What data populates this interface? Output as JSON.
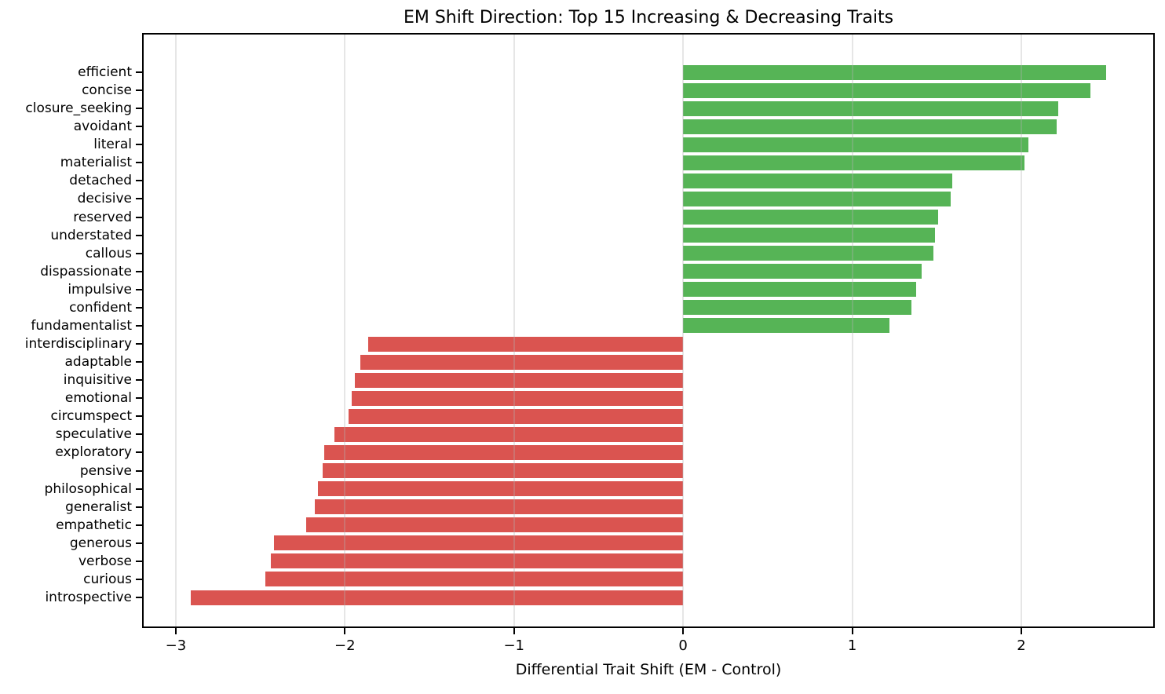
{
  "chart_data": {
    "type": "bar",
    "orientation": "horizontal",
    "title": "EM Shift Direction: Top 15 Increasing & Decreasing Traits",
    "xlabel": "Differential Trait Shift (EM - Control)",
    "xlim": [
      -3.19,
      2.78
    ],
    "xticks": [
      -3,
      -2,
      -1,
      0,
      1,
      2
    ],
    "xtick_labels": [
      "−3",
      "−2",
      "−1",
      "0",
      "1",
      "2"
    ],
    "grid": "vertical gridlines at each x tick, drawn translucently above bars",
    "legend_position": "none",
    "categories": [
      "efficient",
      "concise",
      "closure_seeking",
      "avoidant",
      "literal",
      "materialist",
      "detached",
      "decisive",
      "reserved",
      "understated",
      "callous",
      "dispassionate",
      "impulsive",
      "confident",
      "fundamentalist",
      "interdisciplinary",
      "adaptable",
      "inquisitive",
      "emotional",
      "circumspect",
      "speculative",
      "exploratory",
      "pensive",
      "philosophical",
      "generalist",
      "empathetic",
      "generous",
      "verbose",
      "curious",
      "introspective"
    ],
    "values": [
      2.5,
      2.41,
      2.22,
      2.21,
      2.04,
      2.02,
      1.59,
      1.58,
      1.51,
      1.49,
      1.48,
      1.41,
      1.38,
      1.35,
      1.22,
      -1.86,
      -1.91,
      -1.94,
      -1.96,
      -1.98,
      -2.06,
      -2.12,
      -2.13,
      -2.16,
      -2.18,
      -2.23,
      -2.42,
      -2.44,
      -2.47,
      -2.91
    ],
    "colors": {
      "increase": "#56b456",
      "decrease": "#da5450",
      "grid_overlay": "rgba(176,176,176,0.32)",
      "spine": "#000000",
      "text": "#000000"
    }
  }
}
